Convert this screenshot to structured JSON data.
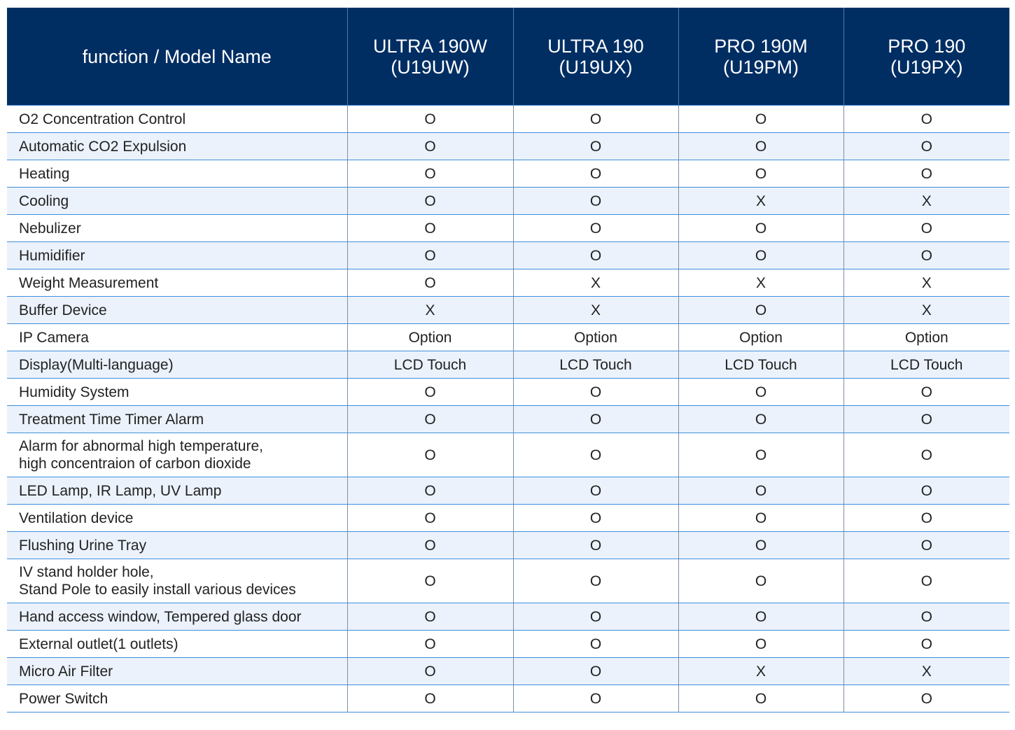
{
  "table": {
    "header": {
      "function_label": "function / Model Name",
      "models": [
        {
          "name": "ULTRA 190W",
          "code": "(U19UW)"
        },
        {
          "name": "ULTRA 190",
          "code": "(U19UX)"
        },
        {
          "name": "PRO 190M",
          "code": "(U19PM)"
        },
        {
          "name": "PRO 190",
          "code": "(U19PX)"
        }
      ]
    },
    "rows": [
      {
        "function": "O2 Concentration Control",
        "values": [
          "O",
          "O",
          "O",
          "O"
        ]
      },
      {
        "function": "Automatic CO2 Expulsion",
        "values": [
          "O",
          "O",
          "O",
          "O"
        ]
      },
      {
        "function": "Heating",
        "values": [
          "O",
          "O",
          "O",
          "O"
        ]
      },
      {
        "function": "Cooling",
        "values": [
          "O",
          "O",
          "X",
          "X"
        ]
      },
      {
        "function": "Nebulizer",
        "values": [
          "O",
          "O",
          "O",
          "O"
        ]
      },
      {
        "function": "Humidifier",
        "values": [
          "O",
          "O",
          "O",
          "O"
        ]
      },
      {
        "function": "Weight Measurement",
        "values": [
          "O",
          "X",
          "X",
          "X"
        ]
      },
      {
        "function": "Buffer Device",
        "values": [
          "X",
          "X",
          "O",
          "X"
        ]
      },
      {
        "function": "IP Camera",
        "values": [
          "Option",
          "Option",
          "Option",
          "Option"
        ]
      },
      {
        "function": "Display(Multi-language)",
        "values": [
          "LCD Touch",
          "LCD Touch",
          "LCD Touch",
          "LCD Touch"
        ]
      },
      {
        "function": "Humidity System",
        "values": [
          "O",
          "O",
          "O",
          "O"
        ]
      },
      {
        "function": "Treatment Time Timer Alarm",
        "values": [
          "O",
          "O",
          "O",
          "O"
        ]
      },
      {
        "function_lines": [
          "Alarm for abnormal high temperature,",
          "high concentraion of carbon dioxide"
        ],
        "values": [
          "O",
          "O",
          "O",
          "O"
        ]
      },
      {
        "function": "LED Lamp, IR Lamp, UV Lamp",
        "values": [
          "O",
          "O",
          "O",
          "O"
        ]
      },
      {
        "function": "Ventilation device",
        "values": [
          "O",
          "O",
          "O",
          "O"
        ]
      },
      {
        "function": "Flushing Urine Tray",
        "values": [
          "O",
          "O",
          "O",
          "O"
        ]
      },
      {
        "function_lines": [
          "IV stand holder hole,",
          "Stand Pole to easily install various devices"
        ],
        "values": [
          "O",
          "O",
          "O",
          "O"
        ]
      },
      {
        "function": "Hand access window, Tempered glass door",
        "values": [
          "O",
          "O",
          "O",
          "O"
        ]
      },
      {
        "function": "External outlet(1 outlets)",
        "values": [
          "O",
          "O",
          "O",
          "O"
        ]
      },
      {
        "function": "Micro Air Filter",
        "values": [
          "O",
          "O",
          "X",
          "X"
        ]
      },
      {
        "function": "Power Switch",
        "values": [
          "O",
          "O",
          "O",
          "O"
        ]
      }
    ]
  }
}
